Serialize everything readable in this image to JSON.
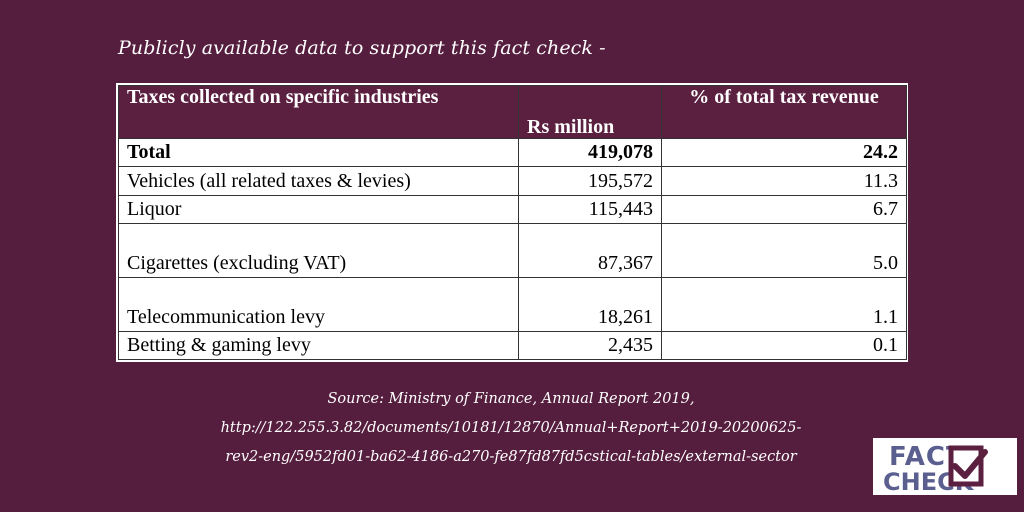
{
  "intro": "Publicly available data to support this fact check -",
  "table": {
    "headers": [
      "Taxes collected on specific industries",
      "Rs million",
      "% of total tax revenue"
    ],
    "rows": [
      {
        "label": "Total",
        "rs_million": "419,078",
        "pct": "24.2"
      },
      {
        "label": "Vehicles (all related taxes & levies)",
        "rs_million": "195,572",
        "pct": "11.3"
      },
      {
        "label": "Liquor",
        "rs_million": "115,443",
        "pct": "6.7"
      },
      {
        "label": "Cigarettes (excluding VAT)",
        "rs_million": "87,367",
        "pct": "5.0"
      },
      {
        "label": "Telecommunication levy",
        "rs_million": "18,261",
        "pct": "1.1"
      },
      {
        "label": "Betting & gaming levy",
        "rs_million": "2,435",
        "pct": "0.1"
      }
    ]
  },
  "source": {
    "line1": "Source: Ministry of Finance, Annual Report 2019,",
    "line2": "http://122.255.3.82/documents/10181/12870/Annual+Report+2019-20200625-",
    "line3": "rev2-eng/5952fd01-ba62-4186-a270-fe87fd87fd5cstical-tables/external-sector"
  },
  "logo": {
    "text_top": "FACT",
    "text_bottom": "CHECK",
    "colors": {
      "text": "#5a5f8f",
      "accent": "#5b1f40",
      "background": "#ffffff"
    }
  },
  "colors": {
    "background": "#561e3e",
    "header": "#5b1f40"
  }
}
